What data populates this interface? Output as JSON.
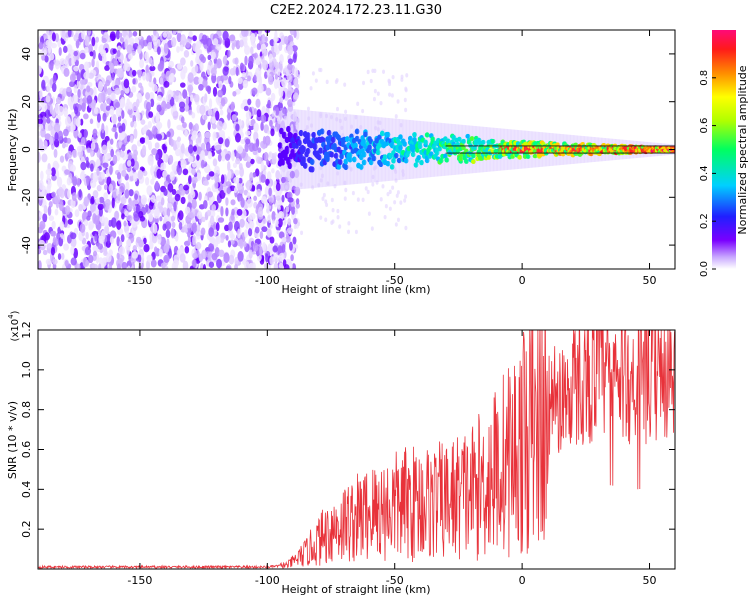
{
  "title": "C2E2.2024.172.23.11.G30",
  "colors": {
    "snr_line": "#e8323a",
    "axis": "#000000",
    "purple": "#6a00ff"
  },
  "chart_data": [
    {
      "type": "heatmap",
      "name": "spectrogram",
      "xlabel": "Height of straight line (km)",
      "ylabel": "Frequency (Hz)",
      "xlim": [
        -190,
        60
      ],
      "ylim": [
        -50,
        50
      ],
      "xticks": [
        -150,
        -100,
        -50,
        0,
        50
      ],
      "yticks": [
        -40,
        -20,
        0,
        20,
        40
      ],
      "colorbar": {
        "label": "Normalized spectral amplitude",
        "range": [
          0.0,
          1.0
        ],
        "ticks": [
          "0.0",
          "0.2",
          "0.4",
          "0.6",
          "0.8"
        ],
        "tick_values": [
          0.0,
          0.2,
          0.4,
          0.6,
          0.8
        ]
      },
      "signal": {
        "noise_region_x": [
          -190,
          -90
        ],
        "signal_start_x": -95,
        "band_center_freq": 0
      }
    },
    {
      "type": "line",
      "name": "snr",
      "xlabel": "Height of straight line (km)",
      "ylabel": "SNR (10 * v/v)",
      "multiplier_label": "(x10",
      "multiplier_exp": "4",
      "multiplier_close": ")",
      "xlim": [
        -190,
        60
      ],
      "ylim": [
        0,
        1.2
      ],
      "xticks": [
        -150,
        -100,
        -50,
        0,
        50
      ],
      "yticks": [
        "0.2",
        "0.4",
        "0.6",
        "0.8",
        "1.0",
        "1.2"
      ],
      "ytick_values": [
        0.2,
        0.4,
        0.6,
        0.8,
        1.0,
        1.2
      ],
      "envelope": [
        {
          "x": -190,
          "y": 0.01
        },
        {
          "x": -100,
          "y": 0.01
        },
        {
          "x": -92,
          "y": 0.02
        },
        {
          "x": -85,
          "y": 0.08
        },
        {
          "x": -75,
          "y": 0.2
        },
        {
          "x": -60,
          "y": 0.28
        },
        {
          "x": -45,
          "y": 0.33
        },
        {
          "x": -30,
          "y": 0.34
        },
        {
          "x": -18,
          "y": 0.4
        },
        {
          "x": -10,
          "y": 0.5
        },
        {
          "x": 0,
          "y": 0.62
        },
        {
          "x": 10,
          "y": 0.8
        },
        {
          "x": 20,
          "y": 0.92
        },
        {
          "x": 30,
          "y": 0.98
        },
        {
          "x": 45,
          "y": 0.95
        },
        {
          "x": 60,
          "y": 0.97
        }
      ]
    }
  ]
}
